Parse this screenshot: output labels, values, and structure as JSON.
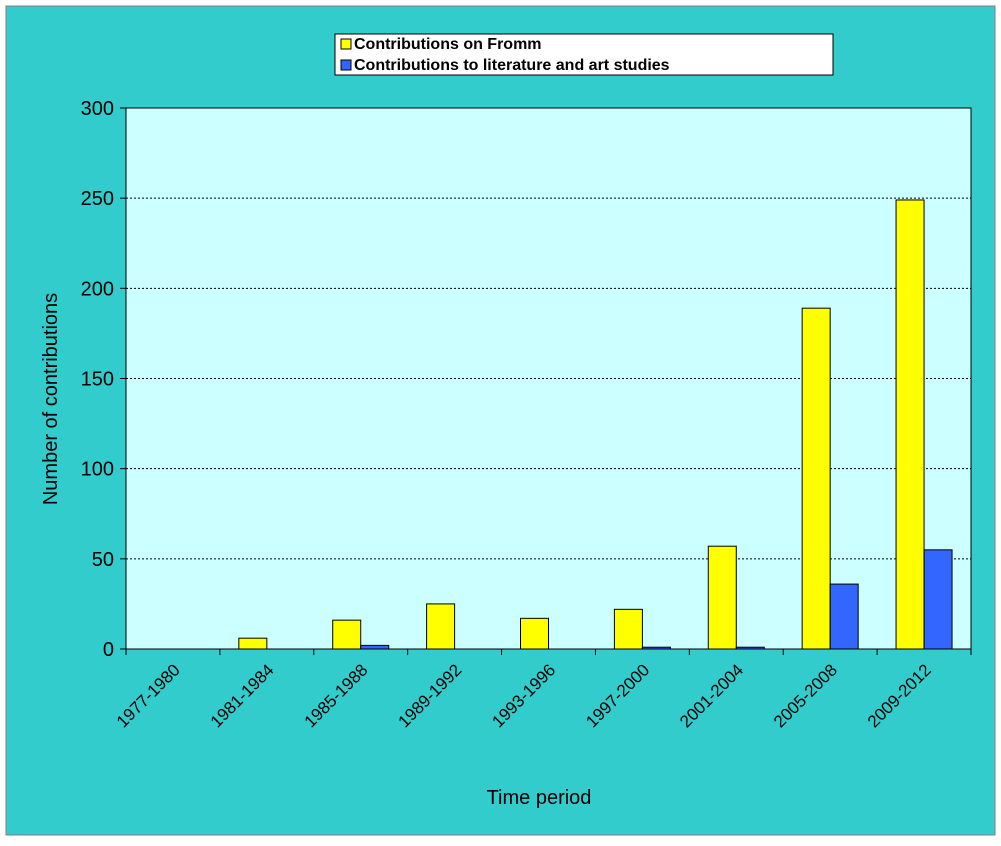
{
  "colors": {
    "outer_background": "#33CCCC",
    "plot_background": "#CCFFFF",
    "legend_background": "#FFFFFF",
    "series_fromm": "#FFFF00",
    "series_literature": "#3366FF",
    "bar_outline": "#000000",
    "gridline": "#000000"
  },
  "chart_data": {
    "type": "bar",
    "title": "",
    "xlabel": "Time period",
    "ylabel": "Number of contributions",
    "ylim": [
      0,
      300
    ],
    "yticks": [
      0,
      50,
      100,
      150,
      200,
      250,
      300
    ],
    "grid": true,
    "legend_position": "top-center",
    "categories": [
      "1977-1980",
      "1981-1984",
      "1985-1988",
      "1989-1992",
      "1993-1996",
      "1997-2000",
      "2001-2004",
      "2005-2008",
      "2009-2012"
    ],
    "series": [
      {
        "name": "Contributions on Fromm",
        "color": "#FFFF00",
        "values": [
          0,
          6,
          16,
          25,
          17,
          22,
          57,
          189,
          249
        ]
      },
      {
        "name": "Contributions to literature and art studies",
        "color": "#3366FF",
        "values": [
          0,
          0,
          2,
          0,
          0,
          1,
          1,
          36,
          55
        ]
      }
    ]
  }
}
